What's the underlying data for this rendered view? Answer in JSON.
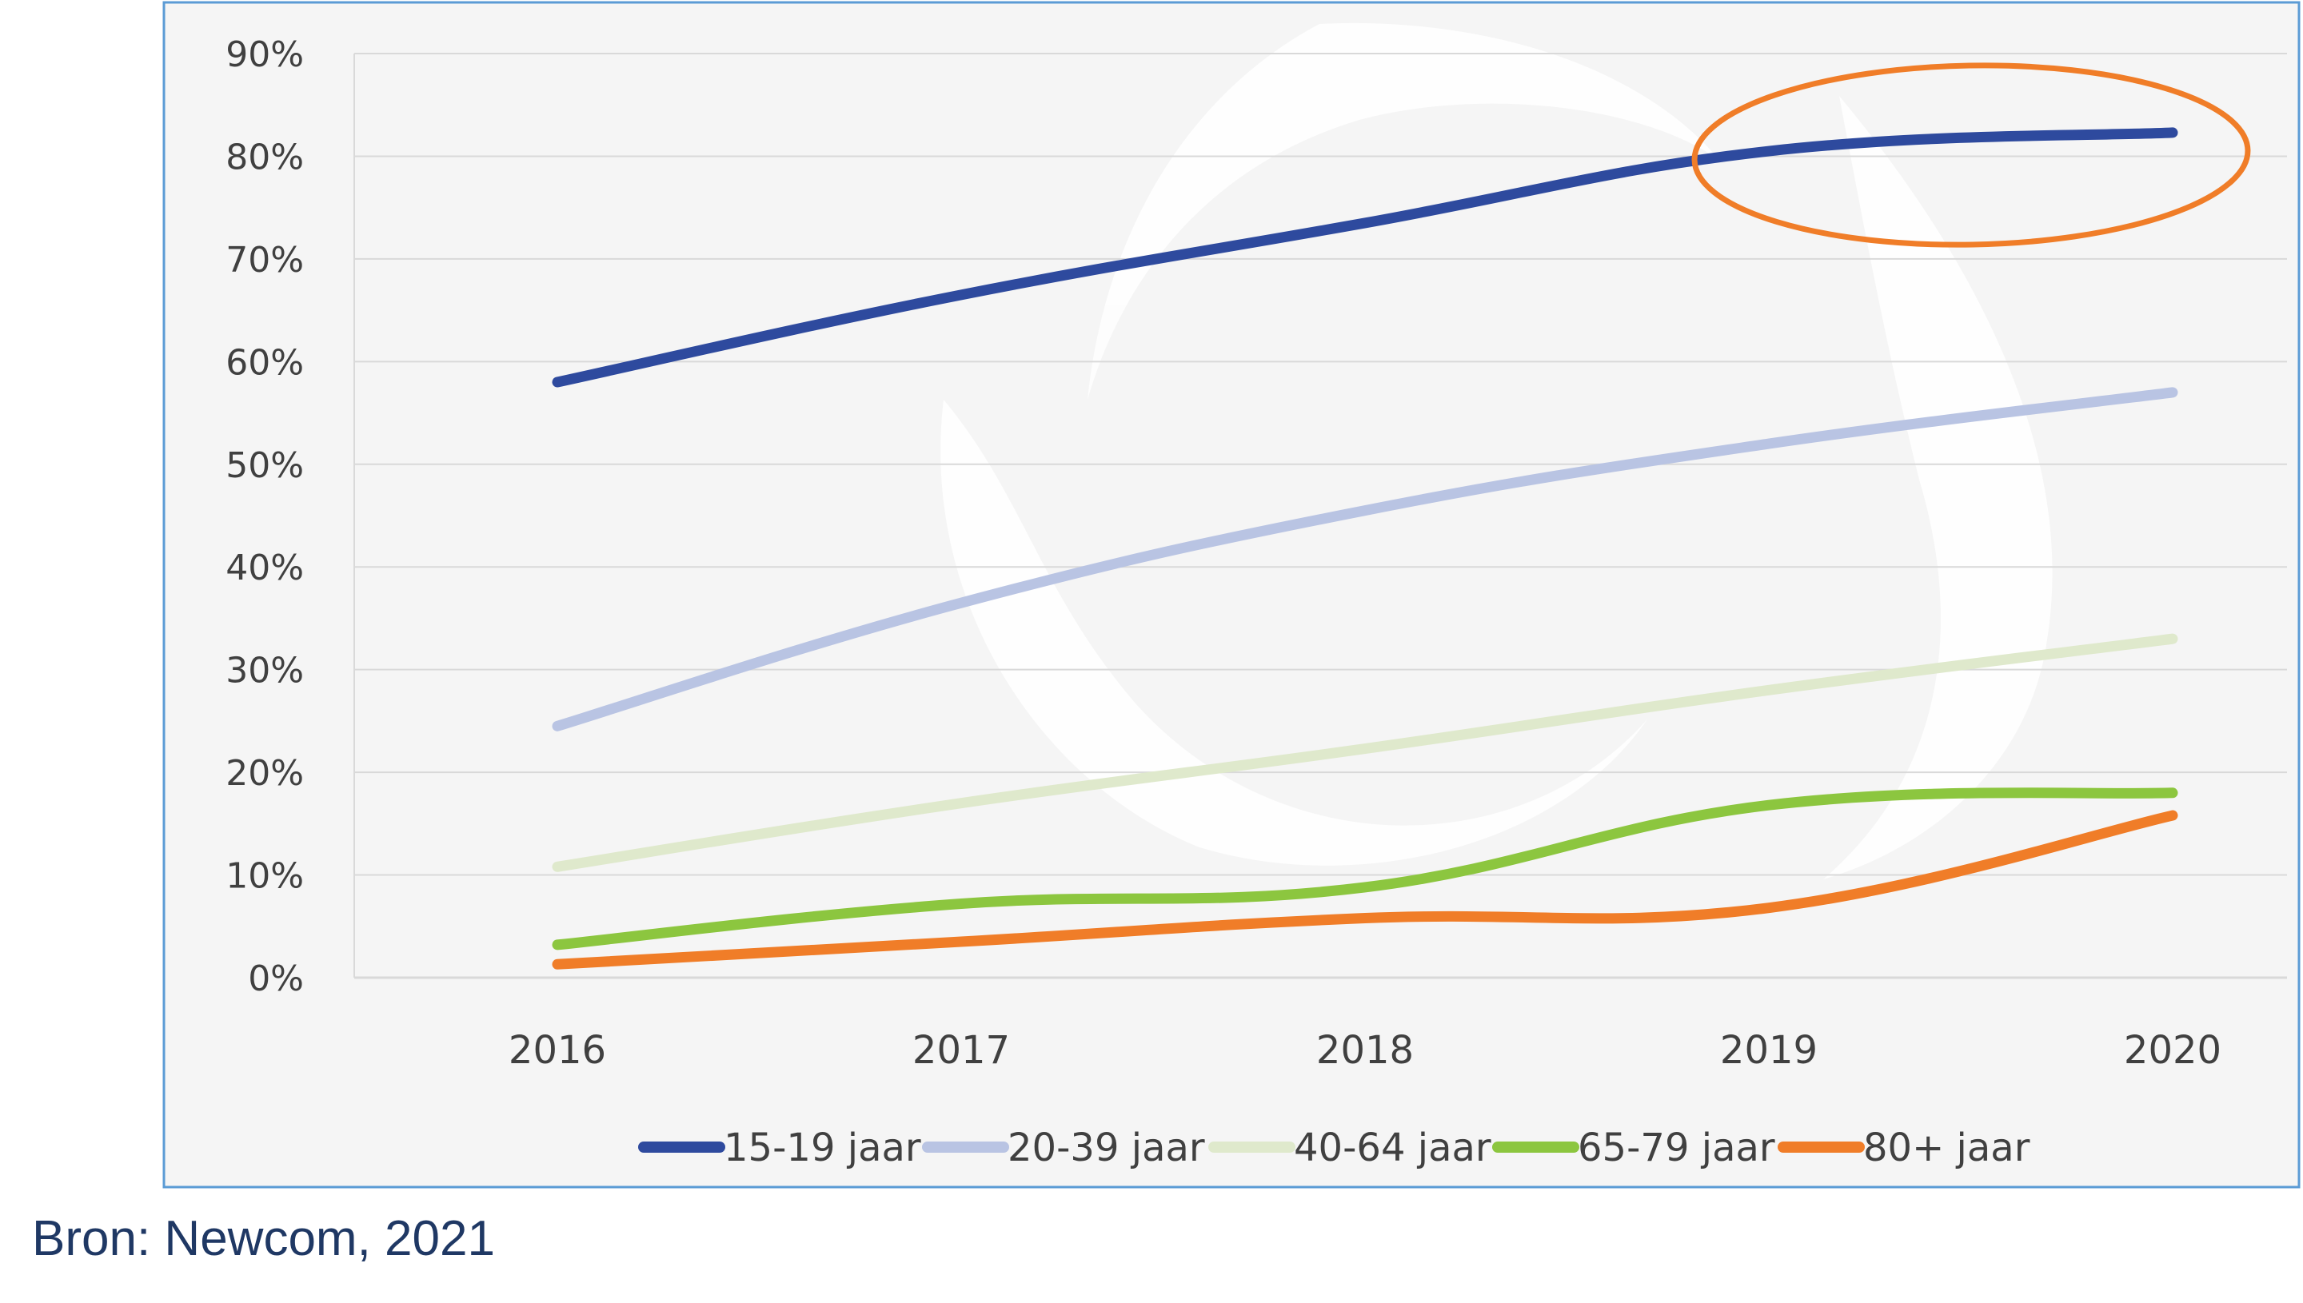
{
  "chart_data": {
    "type": "line",
    "title": "",
    "xlabel": "",
    "ylabel": "",
    "categories": [
      "2016",
      "2017",
      "2018",
      "2019",
      "2020"
    ],
    "y_ticks": [
      "0%",
      "10%",
      "20%",
      "30%",
      "40%",
      "50%",
      "60%",
      "70%",
      "80%",
      "90%"
    ],
    "ylim": [
      0,
      90
    ],
    "grid": true,
    "legend_position": "bottom",
    "series": [
      {
        "name": "15-19 jaar",
        "color": "#2e4a9e",
        "values": [
          58,
          66.5,
          73.5,
          80.5,
          82.3
        ]
      },
      {
        "name": "20-39 jaar",
        "color": "#b9c4e3",
        "values": [
          24.5,
          36.5,
          45.5,
          52,
          57
        ]
      },
      {
        "name": "40-64 jaar",
        "color": "#dfe9cc",
        "values": [
          10.8,
          17,
          22.3,
          28,
          33
        ]
      },
      {
        "name": "65-79 jaar",
        "color": "#8cc63f",
        "values": [
          3.2,
          7.2,
          8.8,
          16.8,
          18
        ]
      },
      {
        "name": "80+ jaar",
        "color": "#f07d28",
        "values": [
          1.3,
          3.5,
          5.8,
          6.8,
          15.8
        ]
      }
    ],
    "highlight": {
      "shape": "ellipse",
      "color": "#f07d28",
      "around": "15-19 jaar, 2019-2020"
    }
  },
  "source": "Bron: Newcom, 2021",
  "colors": {
    "plot_background": "#f5f5f5",
    "frame_border": "#5b9bd5",
    "grid": "#d9d9d9",
    "source_text": "#1f3864"
  }
}
